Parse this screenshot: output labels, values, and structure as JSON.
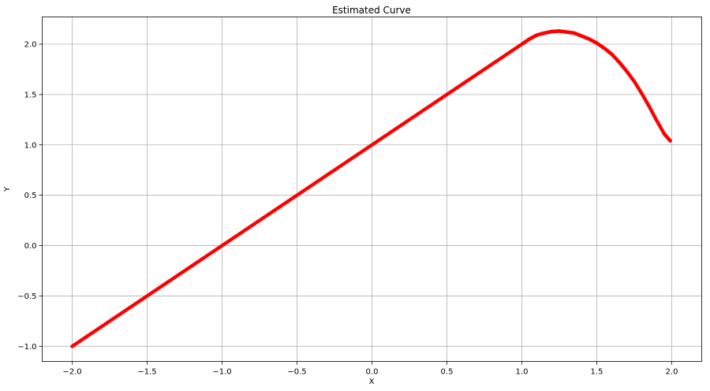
{
  "chart_data": {
    "type": "scatter",
    "title": "Estimated Curve",
    "xlabel": "X",
    "ylabel": "Y",
    "xlim": [
      -2.2,
      2.2
    ],
    "ylim": [
      -1.15,
      2.27
    ],
    "grid": true,
    "legend": "none",
    "x_ticks": [
      -2.0,
      -1.5,
      -1.0,
      -0.5,
      0.0,
      0.5,
      1.0,
      1.5,
      2.0
    ],
    "x_tick_labels": [
      "−2.0",
      "−1.5",
      "−1.0",
      "−0.5",
      "0.0",
      "0.5",
      "1.0",
      "1.5",
      "2.0"
    ],
    "y_ticks": [
      -1.0,
      -0.5,
      0.0,
      0.5,
      1.0,
      1.5,
      2.0
    ],
    "y_tick_labels": [
      "−1.0",
      "−0.5",
      "0.0",
      "0.5",
      "1.0",
      "1.5",
      "2.0"
    ],
    "series": [
      {
        "color": "#ff0000",
        "x_range": [
          -2.0,
          1.99
        ],
        "piecewise": "y = x + 1 for x <= 1; descends after peak near x = 1.25, y = 2.13",
        "points": [
          [
            -2.0,
            -1.0
          ],
          [
            -1.9,
            -0.9
          ],
          [
            -1.8,
            -0.8
          ],
          [
            -1.7,
            -0.7
          ],
          [
            -1.6,
            -0.6
          ],
          [
            -1.5,
            -0.5
          ],
          [
            -1.4,
            -0.4
          ],
          [
            -1.3,
            -0.3
          ],
          [
            -1.2,
            -0.2
          ],
          [
            -1.1,
            -0.1
          ],
          [
            -1.0,
            0.0
          ],
          [
            -0.9,
            0.1
          ],
          [
            -0.8,
            0.2
          ],
          [
            -0.7,
            0.3
          ],
          [
            -0.6,
            0.4
          ],
          [
            -0.5,
            0.5
          ],
          [
            -0.4,
            0.6
          ],
          [
            -0.3,
            0.7
          ],
          [
            -0.2,
            0.8
          ],
          [
            -0.1,
            0.9
          ],
          [
            0.0,
            1.0
          ],
          [
            0.1,
            1.1
          ],
          [
            0.2,
            1.2
          ],
          [
            0.3,
            1.3
          ],
          [
            0.4,
            1.4
          ],
          [
            0.5,
            1.5
          ],
          [
            0.6,
            1.6
          ],
          [
            0.7,
            1.7
          ],
          [
            0.8,
            1.8
          ],
          [
            0.9,
            1.9
          ],
          [
            1.0,
            2.0
          ],
          [
            1.05,
            2.05
          ],
          [
            1.1,
            2.09
          ],
          [
            1.15,
            2.11
          ],
          [
            1.2,
            2.125
          ],
          [
            1.25,
            2.13
          ],
          [
            1.3,
            2.12
          ],
          [
            1.35,
            2.11
          ],
          [
            1.4,
            2.08
          ],
          [
            1.45,
            2.05
          ],
          [
            1.5,
            2.01
          ],
          [
            1.55,
            1.96
          ],
          [
            1.6,
            1.9
          ],
          [
            1.65,
            1.82
          ],
          [
            1.7,
            1.73
          ],
          [
            1.75,
            1.63
          ],
          [
            1.8,
            1.51
          ],
          [
            1.85,
            1.38
          ],
          [
            1.9,
            1.24
          ],
          [
            1.95,
            1.11
          ],
          [
            1.99,
            1.04
          ]
        ]
      }
    ]
  }
}
